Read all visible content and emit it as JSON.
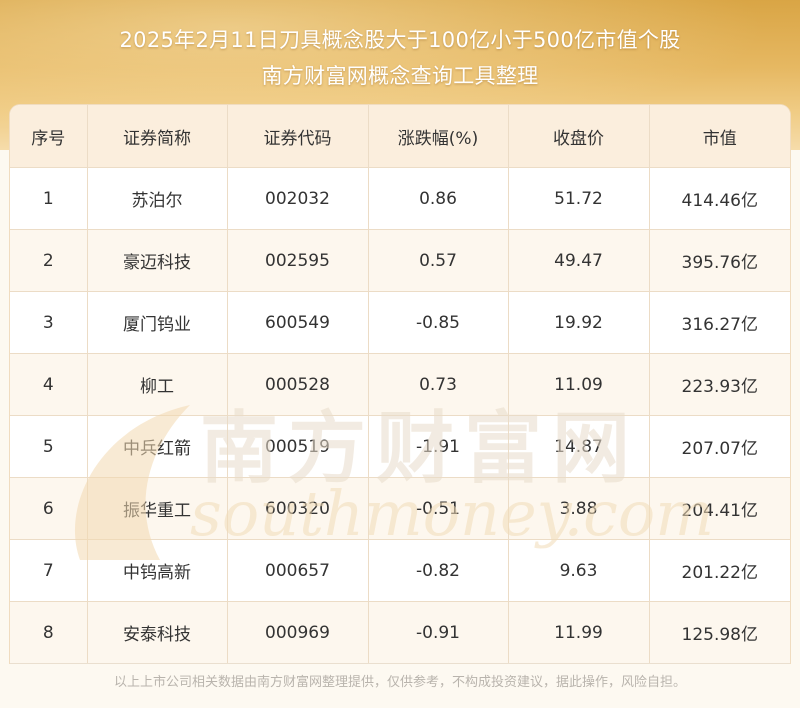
{
  "header": {
    "title_line1": "2025年2月11日刀具概念股大于100亿小于500亿市值个股",
    "title_line2": "南方财富网概念查询工具整理"
  },
  "table": {
    "columns": [
      "序号",
      "证券简称",
      "证券代码",
      "涨跌幅(%)",
      "收盘价",
      "市值"
    ],
    "rows": [
      [
        "1",
        "苏泊尔",
        "002032",
        "0.86",
        "51.72",
        "414.46亿"
      ],
      [
        "2",
        "豪迈科技",
        "002595",
        "0.57",
        "49.47",
        "395.76亿"
      ],
      [
        "3",
        "厦门钨业",
        "600549",
        "-0.85",
        "19.92",
        "316.27亿"
      ],
      [
        "4",
        "柳工",
        "000528",
        "0.73",
        "11.09",
        "223.93亿"
      ],
      [
        "5",
        "中兵红箭",
        "000519",
        "-1.91",
        "14.87",
        "207.07亿"
      ],
      [
        "6",
        "振华重工",
        "600320",
        "-0.51",
        "3.88",
        "204.41亿"
      ],
      [
        "7",
        "中钨高新",
        "000657",
        "-0.82",
        "9.63",
        "201.22亿"
      ],
      [
        "8",
        "安泰科技",
        "000969",
        "-0.91",
        "11.99",
        "125.98亿"
      ]
    ]
  },
  "watermark": {
    "cn_text": "南方财富网",
    "en_text": "southmoney.com"
  },
  "footer": {
    "disclaimer": "以上上市公司相关数据由南方财富网整理提供，仅供参考，不构成投资建议，据此操作，风险自担。"
  },
  "colors": {
    "banner_gold": "#e6b862",
    "header_row_bg": "#fbeedd",
    "alt_row_bg": "#fdf7ee",
    "grid_line": "#ecdcc6",
    "text": "#333333"
  }
}
